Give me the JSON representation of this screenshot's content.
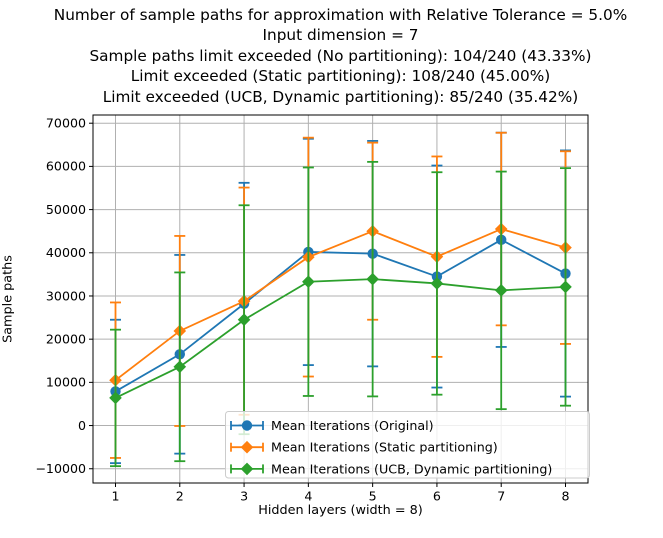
{
  "figure": {
    "title_lines": [
      "Number of sample paths for approximation with Relative Tolerance = 5.0%",
      "Input dimension = 7",
      "Sample paths limit exceeded (No partitioning): 104/240 (43.33%)",
      "Limit exceeded (Static partitioning): 108/240 (45.00%)",
      "Limit exceeded (UCB, Dynamic partitioning): 85/240 (35.42%)"
    ],
    "xlabel": "Hidden layers (width = 8)",
    "ylabel": "Sample paths"
  },
  "chart_data": {
    "type": "line",
    "title": "Number of sample paths for approximation with Relative Tolerance = 5.0%",
    "subtitle_lines": [
      "Input dimension = 7",
      "Sample paths limit exceeded (No partitioning): 104/240 (43.33%)",
      "Limit exceeded (Static partitioning): 108/240 (45.00%)",
      "Limit exceeded (UCB, Dynamic partitioning): 85/240 (35.42%)"
    ],
    "xlabel": "Hidden layers (width = 8)",
    "ylabel": "Sample paths",
    "x": [
      1,
      2,
      3,
      4,
      5,
      6,
      7,
      8
    ],
    "x_tick_labels": [
      "1",
      "2",
      "3",
      "4",
      "5",
      "6",
      "7",
      "8"
    ],
    "y_ticks": [
      -10000,
      0,
      10000,
      20000,
      30000,
      40000,
      50000,
      60000,
      70000
    ],
    "y_tick_labels": [
      "−10000",
      "0",
      "10000",
      "20000",
      "30000",
      "40000",
      "50000",
      "60000",
      "70000"
    ],
    "xlim": [
      0.65,
      8.35
    ],
    "ylim": [
      -13300,
      71900
    ],
    "grid": true,
    "grid_color": "#b0b0b0",
    "axis_color": "#000000",
    "error_bars": "symmetric, with caps",
    "legend_position": "lower right inside axes",
    "series": [
      {
        "name": "Mean Iterations (Original)",
        "color": "#1f77b4",
        "marker": "circle",
        "values": [
          7900,
          16500,
          28200,
          40200,
          39800,
          34500,
          43000,
          35200
        ],
        "errors": [
          16600,
          23000,
          28000,
          26200,
          26100,
          25700,
          24800,
          28500
        ]
      },
      {
        "name": "Mean Iterations (Static partitioning)",
        "color": "#ff7f0e",
        "marker": "diamond",
        "values": [
          10500,
          21900,
          28800,
          39000,
          45000,
          39100,
          45500,
          41200
        ],
        "errors": [
          18000,
          22000,
          26300,
          27650,
          20500,
          23200,
          22300,
          22300
        ]
      },
      {
        "name": "Mean Iterations (UCB, Dynamic partitioning)",
        "color": "#2ca02c",
        "marker": "diamond",
        "values": [
          6400,
          13600,
          24500,
          33300,
          33900,
          32900,
          31300,
          32100
        ],
        "errors": [
          15800,
          21850,
          26500,
          26450,
          27150,
          25750,
          27500,
          27500
        ]
      }
    ]
  }
}
